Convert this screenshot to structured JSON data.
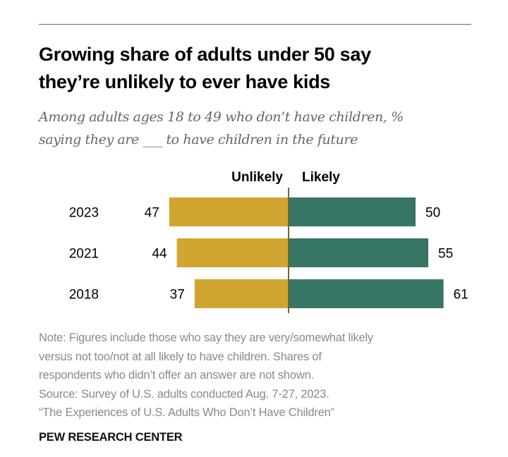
{
  "header": {
    "title_line1": "Growing share of adults under 50 say",
    "title_line2": "they’re unlikely to ever have kids",
    "subtitle_line1": "Among adults ages 18 to 49 who don’t have children, %",
    "subtitle_line2": "saying they are ___ to have children in the future"
  },
  "colors": {
    "unlikely": "#d1a630",
    "likely": "#377565",
    "center_line": "#6b6a3a",
    "text": "#000000",
    "note_text": "#8a8a8a"
  },
  "chart_data": {
    "type": "bar",
    "orientation": "horizontal-diverging",
    "title": "Growing share of adults under 50 say they’re unlikely to ever have kids",
    "subtitle": "Among adults ages 18 to 49 who don’t have children, % saying they are ___ to have children in the future",
    "categories": [
      "2023",
      "2021",
      "2018"
    ],
    "series": [
      {
        "name": "Unlikely",
        "side": "left",
        "values": [
          47,
          44,
          37
        ],
        "labels": [
          "47",
          "44",
          "37"
        ]
      },
      {
        "name": "Likely",
        "side": "right",
        "values": [
          50,
          55,
          61
        ],
        "labels": [
          "50",
          "55",
          "61"
        ]
      }
    ],
    "xlabel": "",
    "ylabel": "",
    "xlim": [
      -61,
      61
    ],
    "grid": false,
    "legend": "top-center",
    "unit": "%"
  },
  "notes": {
    "lines": [
      "Note: Figures include those who say they are very/somewhat likely",
      "versus not too/not at all likely to have children. Shares of",
      "respondents who didn’t offer an answer are not shown.",
      "Source: Survey of U.S. adults conducted Aug. 7-27, 2023.",
      "“The Experiences of U.S. Adults Who Don’t Have Children”"
    ]
  },
  "brand": "PEW RESEARCH CENTER"
}
